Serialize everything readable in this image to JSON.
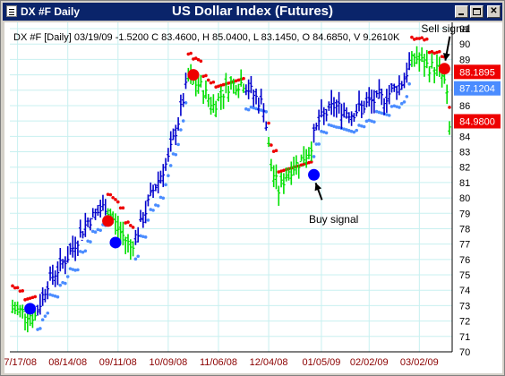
{
  "window": {
    "title_left": "DX #F Daily",
    "title_center": "US Dollar Index (Futures)"
  },
  "colors": {
    "up_bar": "#00e000",
    "down_bar": "#0000cc",
    "sell_stop": "#ee0000",
    "buy_stop": "#4a8cff",
    "sell_marker": "#ee0000",
    "buy_marker": "#0000ff",
    "grid": "#c8f0f0",
    "value_red": "#ee0000",
    "value_blue": "#4a8cff"
  },
  "chart_data": {
    "type": "ohlc",
    "info_line": "DX #F [Daily] 03/19/09  -1.5200 C 83.4600, H 85.0400, L 83.1450, O 84.6850, V 9.2610K",
    "ylim": [
      70,
      91
    ],
    "yticks": [
      70,
      71,
      72,
      73,
      74,
      75,
      76,
      77,
      78,
      79,
      80,
      81,
      82,
      83,
      84,
      85,
      86,
      87,
      88,
      89,
      90,
      91
    ],
    "x_count": 175,
    "xtick_labels": [
      {
        "label": "07/17/08",
        "i": 2
      },
      {
        "label": "08/14/08",
        "i": 22
      },
      {
        "label": "09/11/08",
        "i": 42
      },
      {
        "label": "10/09/08",
        "i": 62
      },
      {
        "label": "11/06/08",
        "i": 82
      },
      {
        "label": "12/04/08",
        "i": 102
      },
      {
        "label": "01/05/09",
        "i": 123
      },
      {
        "label": "02/02/09",
        "i": 142
      },
      {
        "label": "03/02/09",
        "i": 162
      }
    ],
    "trend_segments": [
      {
        "from": 0,
        "to": 9,
        "dir": "up"
      },
      {
        "from": 10,
        "to": 37,
        "dir": "down"
      },
      {
        "from": 38,
        "to": 48,
        "dir": "up"
      },
      {
        "from": 49,
        "to": 69,
        "dir": "down"
      },
      {
        "from": 70,
        "to": 92,
        "dir": "up"
      },
      {
        "from": 93,
        "to": 101,
        "dir": "down"
      },
      {
        "from": 102,
        "to": 119,
        "dir": "up"
      },
      {
        "from": 120,
        "to": 158,
        "dir": "down"
      },
      {
        "from": 159,
        "to": 174,
        "dir": "up"
      }
    ],
    "price_path": [
      {
        "i": 0,
        "v": 72.8
      },
      {
        "i": 4,
        "v": 72.6
      },
      {
        "i": 9,
        "v": 72.3
      },
      {
        "i": 14,
        "v": 74.5
      },
      {
        "i": 22,
        "v": 76.2
      },
      {
        "i": 30,
        "v": 78.5
      },
      {
        "i": 37,
        "v": 79.5
      },
      {
        "i": 42,
        "v": 78.0
      },
      {
        "i": 47,
        "v": 76.8
      },
      {
        "i": 50,
        "v": 77.8
      },
      {
        "i": 56,
        "v": 80.5
      },
      {
        "i": 62,
        "v": 82.5
      },
      {
        "i": 66,
        "v": 85.0
      },
      {
        "i": 70,
        "v": 87.8
      },
      {
        "i": 75,
        "v": 87.2
      },
      {
        "i": 80,
        "v": 86.0
      },
      {
        "i": 86,
        "v": 87.3
      },
      {
        "i": 92,
        "v": 87.5
      },
      {
        "i": 97,
        "v": 86.5
      },
      {
        "i": 100,
        "v": 86.0
      },
      {
        "i": 103,
        "v": 82.0
      },
      {
        "i": 106,
        "v": 80.5
      },
      {
        "i": 110,
        "v": 81.8
      },
      {
        "i": 114,
        "v": 82.3
      },
      {
        "i": 118,
        "v": 83.0
      },
      {
        "i": 122,
        "v": 85.0
      },
      {
        "i": 128,
        "v": 86.0
      },
      {
        "i": 135,
        "v": 85.5
      },
      {
        "i": 142,
        "v": 86.2
      },
      {
        "i": 148,
        "v": 86.5
      },
      {
        "i": 155,
        "v": 87.5
      },
      {
        "i": 160,
        "v": 89.2
      },
      {
        "i": 165,
        "v": 88.6
      },
      {
        "i": 170,
        "v": 88.3
      },
      {
        "i": 172,
        "v": 87.5
      },
      {
        "i": 173,
        "v": 86.5
      },
      {
        "i": 174,
        "v": 84.5
      }
    ],
    "signal_markers": [
      {
        "i": 7,
        "v": 72.8,
        "type": "buy"
      },
      {
        "i": 38,
        "v": 78.5,
        "type": "sell"
      },
      {
        "i": 41,
        "v": 77.1,
        "type": "buy"
      },
      {
        "i": 72,
        "v": 88.0,
        "type": "sell"
      },
      {
        "i": 120,
        "v": 81.5,
        "type": "buy"
      },
      {
        "i": 172,
        "v": 88.4,
        "type": "sell"
      }
    ],
    "annotations": [
      {
        "text": "Sell signal",
        "i": 172,
        "v": 91.0
      },
      {
        "text": "Buy signal",
        "i": 123,
        "v": 78.6
      }
    ],
    "last_values": [
      {
        "label": "88.1895",
        "v": 88.1895,
        "color": "red"
      },
      {
        "label": "87.1204",
        "v": 87.1204,
        "color": "blue"
      },
      {
        "label": "84.9800",
        "v": 84.98,
        "color": "red"
      }
    ]
  }
}
